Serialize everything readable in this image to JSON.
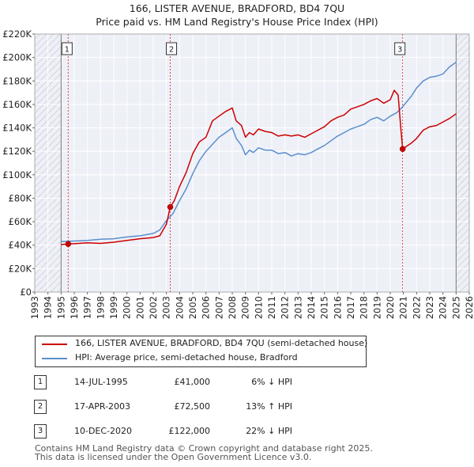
{
  "title_line1": "166, LISTER AVENUE, BRADFORD, BD4 7QU",
  "title_line2": "Price paid vs. HM Land Registry's House Price Index (HPI)",
  "chart_data": {
    "type": "line",
    "title": "166, LISTER AVENUE, BRADFORD, BD4 7QU — Price paid vs. HM Land Registry's House Price Index (HPI)",
    "xlabel": "",
    "ylabel": "",
    "xlim": [
      1993,
      2026
    ],
    "ylim": [
      0,
      220000
    ],
    "x_ticks": [
      1993,
      1994,
      1995,
      1996,
      1997,
      1998,
      1999,
      2000,
      2001,
      2002,
      2003,
      2004,
      2005,
      2006,
      2007,
      2008,
      2009,
      2010,
      2011,
      2012,
      2013,
      2014,
      2015,
      2016,
      2017,
      2018,
      2019,
      2020,
      2021,
      2022,
      2023,
      2024,
      2025,
      2026
    ],
    "y_ticks": [
      0,
      20000,
      40000,
      60000,
      80000,
      100000,
      120000,
      140000,
      160000,
      180000,
      200000,
      220000
    ],
    "y_tick_labels": [
      "£0",
      "£20K",
      "£40K",
      "£60K",
      "£80K",
      "£100K",
      "£120K",
      "£140K",
      "£160K",
      "£180K",
      "£200K",
      "£220K"
    ],
    "grid": true,
    "series": [
      {
        "name": "166, LISTER AVENUE, BRADFORD, BD4 7QU (semi-detached house)",
        "color": "#cc0000",
        "x": [
          1995.0,
          1995.54,
          1996.0,
          1997.0,
          1998.0,
          1999.0,
          2000.0,
          2001.0,
          2002.0,
          2002.5,
          2003.0,
          2003.29,
          2003.6,
          2004.0,
          2004.5,
          2005.0,
          2005.5,
          2006.0,
          2006.5,
          2007.0,
          2007.5,
          2008.0,
          2008.3,
          2008.7,
          2009.0,
          2009.3,
          2009.6,
          2010.0,
          2010.5,
          2011.0,
          2011.5,
          2012.0,
          2012.5,
          2013.0,
          2013.5,
          2014.0,
          2014.5,
          2015.0,
          2015.5,
          2016.0,
          2016.5,
          2017.0,
          2017.5,
          2018.0,
          2018.5,
          2019.0,
          2019.5,
          2020.0,
          2020.3,
          2020.6,
          2020.8,
          2020.94,
          2021.2,
          2021.6,
          2022.0,
          2022.5,
          2023.0,
          2023.5,
          2024.0,
          2024.5,
          2025.0
        ],
        "y": [
          40500,
          41000,
          41200,
          42000,
          41500,
          42500,
          44000,
          45500,
          46500,
          48000,
          58000,
          72500,
          78000,
          90000,
          102000,
          118000,
          128000,
          132000,
          146000,
          150000,
          154000,
          157000,
          146000,
          142000,
          132000,
          136000,
          134000,
          139000,
          137000,
          136000,
          133000,
          134000,
          133000,
          134000,
          132000,
          135000,
          138000,
          141000,
          146000,
          149000,
          151000,
          156000,
          158000,
          160000,
          163000,
          165000,
          161000,
          164000,
          172000,
          168000,
          140000,
          122000,
          124000,
          127000,
          131000,
          138000,
          141000,
          142000,
          145000,
          148000,
          152000
        ]
      },
      {
        "name": "HPI: Average price, semi-detached house, Bradford",
        "color": "#5a8fcc",
        "x": [
          1995.0,
          1996.0,
          1997.0,
          1998.0,
          1999.0,
          2000.0,
          2001.0,
          2002.0,
          2002.5,
          2003.0,
          2003.5,
          2004.0,
          2004.5,
          2005.0,
          2005.5,
          2006.0,
          2006.5,
          2007.0,
          2007.5,
          2008.0,
          2008.3,
          2008.7,
          2009.0,
          2009.3,
          2009.6,
          2010.0,
          2010.5,
          2011.0,
          2011.5,
          2012.0,
          2012.5,
          2013.0,
          2013.5,
          2014.0,
          2014.5,
          2015.0,
          2015.5,
          2016.0,
          2016.5,
          2017.0,
          2017.5,
          2018.0,
          2018.5,
          2019.0,
          2019.5,
          2020.0,
          2020.5,
          2020.94,
          2021.3,
          2021.6,
          2022.0,
          2022.5,
          2023.0,
          2023.5,
          2024.0,
          2024.5,
          2025.0
        ],
        "y": [
          43000,
          43500,
          44000,
          45000,
          45500,
          47000,
          48000,
          50000,
          53000,
          61000,
          67000,
          78000,
          88000,
          101000,
          112000,
          120000,
          126000,
          132000,
          136000,
          140000,
          131000,
          125000,
          117000,
          121000,
          119000,
          123000,
          121000,
          121000,
          118000,
          119000,
          116000,
          118000,
          117000,
          119000,
          122000,
          125000,
          129000,
          133000,
          136000,
          139000,
          141000,
          143000,
          147000,
          149000,
          146000,
          150000,
          153000,
          158000,
          163000,
          167000,
          174000,
          180000,
          183000,
          184000,
          186000,
          192000,
          196000
        ]
      }
    ],
    "sales": [
      {
        "label": "1",
        "year": 1995.54,
        "date": "14-JUL-1995",
        "price": 41000,
        "price_label": "£41,000",
        "hpi": "6% ↓ HPI"
      },
      {
        "label": "2",
        "year": 2003.29,
        "date": "17-APR-2003",
        "price": 72500,
        "price_label": "£72,500",
        "hpi": "13% ↑ HPI"
      },
      {
        "label": "3",
        "year": 2020.94,
        "date": "10-DEC-2020",
        "price": 122000,
        "price_label": "£122,000",
        "hpi": "22% ↓ HPI"
      }
    ],
    "hatched_before": 1995.0,
    "hatched_after": 2025.0
  },
  "legend": {
    "property_label": "166, LISTER AVENUE, BRADFORD, BD4 7QU (semi-detached house)",
    "hpi_label": "HPI: Average price, semi-detached house, Bradford"
  },
  "table": {
    "rows": [
      {
        "num": "1",
        "date": "14-JUL-1995",
        "price": "£41,000",
        "hpi": "6% ↓ HPI"
      },
      {
        "num": "2",
        "date": "17-APR-2003",
        "price": "£72,500",
        "hpi": "13% ↑ HPI"
      },
      {
        "num": "3",
        "date": "10-DEC-2020",
        "price": "£122,000",
        "hpi": "22% ↓ HPI"
      }
    ]
  },
  "footer": {
    "line1": "Contains HM Land Registry data © Crown copyright and database right 2025.",
    "line2": "This data is licensed under the Open Government Licence v3.0."
  }
}
